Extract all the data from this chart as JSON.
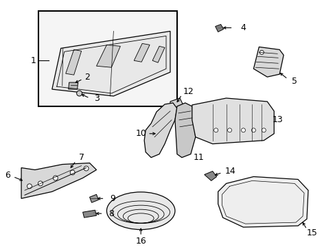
{
  "bg_color": "#ffffff",
  "line_color": "#000000",
  "text_color": "#000000",
  "fig_w": 4.89,
  "fig_h": 3.6,
  "dpi": 100
}
